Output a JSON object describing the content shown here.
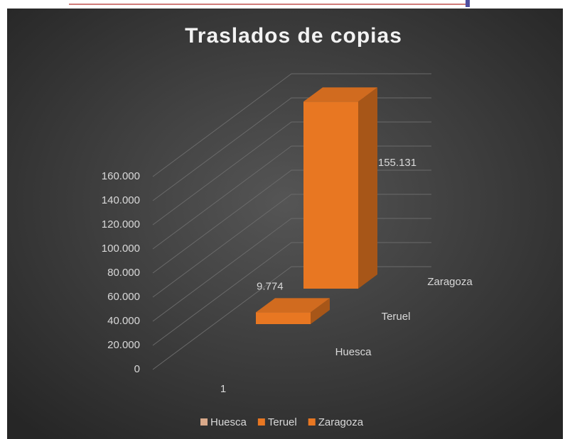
{
  "chart_data": {
    "type": "bar3d",
    "title": "Traslados  de copias",
    "categories": [
      "1"
    ],
    "series": [
      {
        "name": "Huesca",
        "color": "#d9a98a",
        "values": [
          null
        ],
        "value_labels": [
          null
        ]
      },
      {
        "name": "Teruel",
        "color": "#e87722",
        "values": [
          9774
        ],
        "value_labels": [
          "9.774"
        ]
      },
      {
        "name": "Zaragoza",
        "color": "#e87722",
        "values": [
          155131
        ],
        "value_labels": [
          "155.131"
        ]
      }
    ],
    "ylim": [
      0,
      160000
    ],
    "yticks": [
      0,
      {
        "value": 20000,
        "label": "20.000"
      },
      {
        "value": 40000,
        "label": "40.000"
      },
      {
        "value": 60000,
        "label": "60.000"
      },
      {
        "value": 80000,
        "label": "80.000"
      },
      {
        "value": 100000,
        "label": "100.000"
      },
      {
        "value": 120000,
        "label": "120.000"
      },
      {
        "value": 140000,
        "label": "140.000"
      },
      {
        "value": 160000,
        "label": "160.000"
      }
    ],
    "grid": true,
    "legend": "bottom"
  }
}
